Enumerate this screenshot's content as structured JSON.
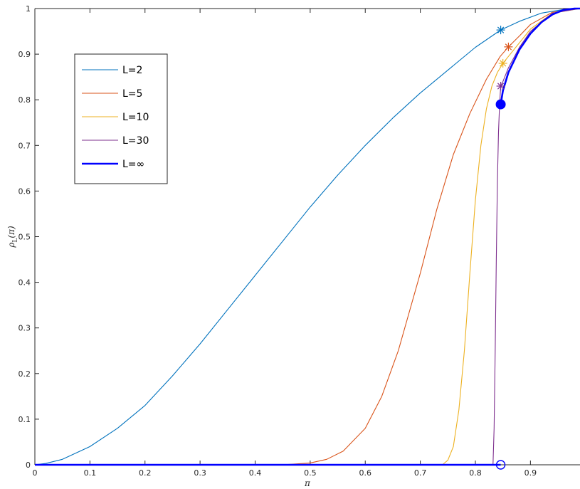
{
  "chart_data": {
    "type": "line",
    "xlabel": "π",
    "ylabel": "ρ_L(π)",
    "ylabel_main": "ρ",
    "ylabel_sub": "L",
    "ylabel_tail": "(π)",
    "xlim": [
      0,
      0.99
    ],
    "ylim": [
      0,
      1
    ],
    "xticks": [
      0,
      0.1,
      0.2,
      0.3,
      0.4,
      0.5,
      0.6,
      0.7,
      0.8,
      0.9
    ],
    "xtick_labels": [
      "0",
      "0.1",
      "0.2",
      "0.3",
      "0.4",
      "0.5",
      "0.6",
      "0.7",
      "0.8",
      "0.9"
    ],
    "yticks": [
      0,
      0.1,
      0.2,
      0.3,
      0.4,
      0.5,
      0.6,
      0.7,
      0.8,
      0.9,
      1
    ],
    "ytick_labels": [
      "0",
      "0.1",
      "0.2",
      "0.3",
      "0.4",
      "0.5",
      "0.6",
      "0.7",
      "0.8",
      "0.9",
      "1"
    ],
    "grid": false,
    "legend_position": "upper-left",
    "series": [
      {
        "name": "L=2",
        "color": "#0072BD",
        "x": [
          0,
          0.02,
          0.05,
          0.1,
          0.15,
          0.2,
          0.25,
          0.3,
          0.35,
          0.4,
          0.45,
          0.5,
          0.55,
          0.6,
          0.65,
          0.7,
          0.75,
          0.8,
          0.846,
          0.88,
          0.92,
          0.96,
          0.99
        ],
        "y": [
          0,
          0.003,
          0.012,
          0.04,
          0.08,
          0.13,
          0.195,
          0.265,
          0.34,
          0.415,
          0.49,
          0.565,
          0.635,
          0.7,
          0.76,
          0.815,
          0.865,
          0.915,
          0.953,
          0.972,
          0.99,
          0.998,
          1.0
        ],
        "marker": {
          "x": 0.846,
          "y": 0.953,
          "symbol": "asterisk"
        }
      },
      {
        "name": "L=5",
        "color": "#D95319",
        "x": [
          0,
          0.45,
          0.5,
          0.53,
          0.56,
          0.6,
          0.63,
          0.66,
          0.7,
          0.73,
          0.76,
          0.79,
          0.82,
          0.845,
          0.86,
          0.88,
          0.9,
          0.94,
          0.99
        ],
        "y": [
          0,
          0,
          0.004,
          0.012,
          0.03,
          0.08,
          0.15,
          0.25,
          0.42,
          0.56,
          0.68,
          0.77,
          0.845,
          0.895,
          0.916,
          0.94,
          0.965,
          0.992,
          1.0
        ],
        "marker": {
          "x": 0.86,
          "y": 0.916,
          "symbol": "asterisk"
        }
      },
      {
        "name": "L=10",
        "color": "#EDB120",
        "x": [
          0,
          0.74,
          0.75,
          0.76,
          0.77,
          0.78,
          0.79,
          0.8,
          0.81,
          0.82,
          0.83,
          0.84,
          0.85,
          0.86,
          0.88,
          0.9,
          0.94,
          0.99
        ],
        "y": [
          0,
          0,
          0.01,
          0.04,
          0.12,
          0.25,
          0.42,
          0.58,
          0.7,
          0.78,
          0.83,
          0.86,
          0.88,
          0.895,
          0.925,
          0.955,
          0.99,
          1.0
        ],
        "marker": {
          "x": 0.85,
          "y": 0.88,
          "symbol": "asterisk"
        }
      },
      {
        "name": "L=30",
        "color": "#7E2F8E",
        "x": [
          0,
          0.832,
          0.834,
          0.836,
          0.838,
          0.84,
          0.842,
          0.844,
          0.846,
          0.85,
          0.86,
          0.88,
          0.9,
          0.94,
          0.99
        ],
        "y": [
          0,
          0,
          0.08,
          0.25,
          0.45,
          0.62,
          0.73,
          0.79,
          0.83,
          0.84,
          0.87,
          0.915,
          0.95,
          0.99,
          1.0
        ],
        "marker": {
          "x": 0.846,
          "y": 0.83,
          "symbol": "asterisk"
        }
      },
      {
        "name": "L=∞",
        "color": "#0000FF",
        "thick": true,
        "x": [
          0,
          0.846,
          0.846,
          0.85,
          0.86,
          0.88,
          0.9,
          0.92,
          0.94,
          0.96,
          0.98,
          0.99
        ],
        "y": [
          0,
          0,
          0.79,
          0.82,
          0.86,
          0.91,
          0.945,
          0.97,
          0.987,
          0.997,
          1.0,
          1.0
        ],
        "break_after_index": 1,
        "open_marker": {
          "x": 0.846,
          "y": 0
        },
        "filled_marker": {
          "x": 0.846,
          "y": 0.79
        }
      }
    ]
  }
}
